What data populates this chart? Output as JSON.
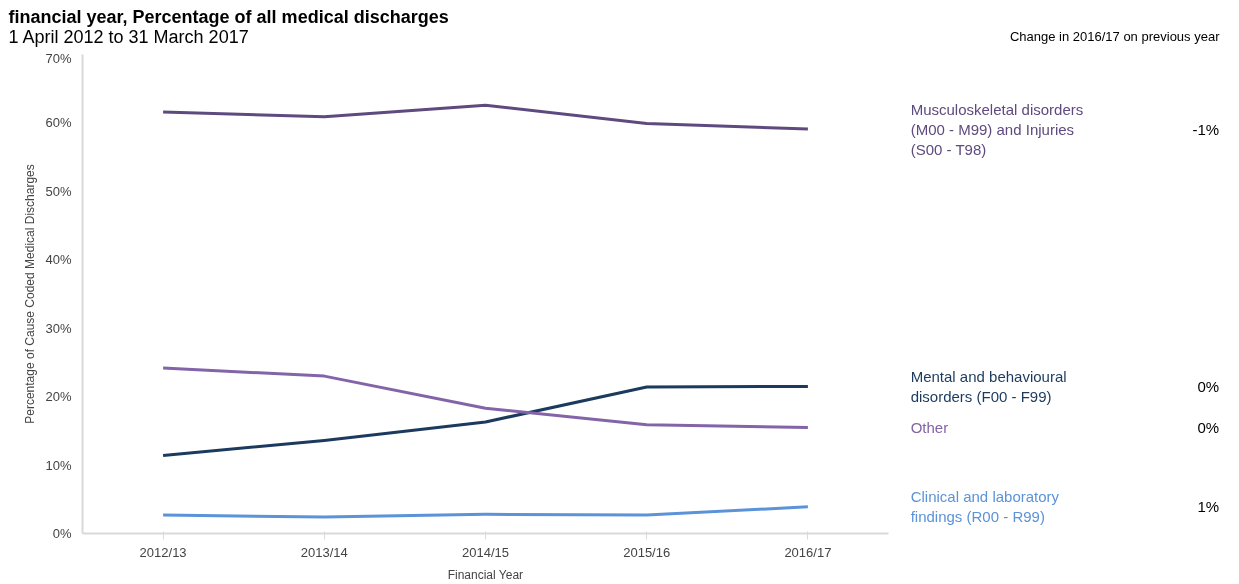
{
  "chart_data": {
    "type": "line",
    "title": "financial year, Percentage of all medical discharges",
    "subtitle": "1 April 2012 to 31 March 2017",
    "xlabel": "Financial Year",
    "ylabel": "Percentage of Cause Coded Medical Discharges",
    "categories": [
      "2012/13",
      "2013/14",
      "2014/15",
      "2015/16",
      "2016/17"
    ],
    "series": [
      {
        "name": "Musculoskeletal disorders (M00 - M99) and Injuries (S00 - T98)",
        "color": "#5e4a7e",
        "values": [
          61.6,
          60.9,
          62.6,
          59.9,
          59.1
        ]
      },
      {
        "name": "Mental and behavioural disorders  (F00 - F99)",
        "color": "#1b3a5e",
        "values": [
          11.4,
          13.6,
          16.3,
          21.4,
          21.5
        ]
      },
      {
        "name": "Other",
        "color": "#8364a8",
        "values": [
          24.2,
          23.0,
          18.3,
          15.9,
          15.5
        ]
      },
      {
        "name": "Clinical and laboratory findings  (R00 - R99)",
        "color": "#5b93d8",
        "values": [
          2.7,
          2.4,
          2.8,
          2.7,
          3.9
        ]
      }
    ],
    "annotations": [
      "Change in 2016/17 on previous year",
      "-1%",
      "0%",
      "0%",
      "1%"
    ],
    "ylim": [
      0,
      70
    ],
    "yticks": [
      {
        "value": 0,
        "label": "0%"
      },
      {
        "value": 10,
        "label": "10%"
      },
      {
        "value": 20,
        "label": "20%"
      },
      {
        "value": 30,
        "label": "30%"
      },
      {
        "value": 40,
        "label": "40%"
      },
      {
        "value": 50,
        "label": "50%"
      },
      {
        "value": 60,
        "label": "60%"
      },
      {
        "value": 70,
        "label": "70%"
      }
    ],
    "grid": false,
    "marker": "none",
    "line_style": "solid"
  }
}
